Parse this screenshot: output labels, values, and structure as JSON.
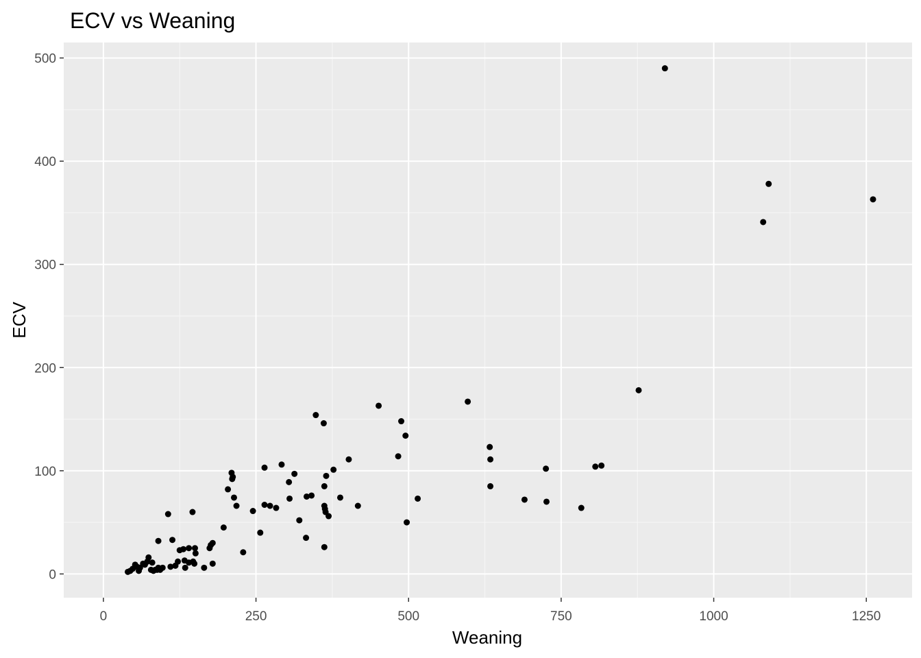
{
  "chart_data": {
    "type": "scatter",
    "title": "ECV vs Weaning",
    "xlabel": "Weaning",
    "ylabel": "ECV",
    "xlim": [
      -65,
      1325
    ],
    "ylim": [
      -23,
      515
    ],
    "x_ticks": [
      0,
      250,
      500,
      750,
      1000,
      1250
    ],
    "y_ticks": [
      0,
      100,
      200,
      300,
      400,
      500
    ],
    "x_tick_labels": [
      "0",
      "250",
      "500",
      "750",
      "1000",
      "1250"
    ],
    "y_tick_labels": [
      "0",
      "100",
      "200",
      "300",
      "400",
      "500"
    ],
    "grid": true,
    "colors": {
      "panel": "#ebebeb",
      "grid_major": "#ffffff",
      "grid_minor": "#f5f5f5",
      "point": "#000000",
      "tick": "#333333"
    },
    "points": [
      [
        40,
        2
      ],
      [
        44,
        3
      ],
      [
        48,
        5
      ],
      [
        52,
        9
      ],
      [
        55,
        7
      ],
      [
        58,
        3
      ],
      [
        60,
        6
      ],
      [
        65,
        10
      ],
      [
        68,
        9
      ],
      [
        72,
        12
      ],
      [
        74,
        16
      ],
      [
        78,
        4
      ],
      [
        80,
        11
      ],
      [
        82,
        3
      ],
      [
        85,
        4
      ],
      [
        88,
        4
      ],
      [
        90,
        6
      ],
      [
        90,
        32
      ],
      [
        93,
        4
      ],
      [
        97,
        6
      ],
      [
        106,
        58
      ],
      [
        110,
        7
      ],
      [
        113,
        33
      ],
      [
        118,
        8
      ],
      [
        122,
        12
      ],
      [
        125,
        23
      ],
      [
        131,
        24
      ],
      [
        133,
        13
      ],
      [
        134,
        6
      ],
      [
        140,
        11
      ],
      [
        140,
        25
      ],
      [
        146,
        60
      ],
      [
        147,
        12
      ],
      [
        149,
        10
      ],
      [
        150,
        25
      ],
      [
        151,
        20
      ],
      [
        165,
        6
      ],
      [
        174,
        25
      ],
      [
        176,
        28
      ],
      [
        179,
        10
      ],
      [
        179,
        30
      ],
      [
        197,
        45
      ],
      [
        204,
        82
      ],
      [
        210,
        98
      ],
      [
        211,
        92
      ],
      [
        212,
        94
      ],
      [
        214,
        74
      ],
      [
        218,
        66
      ],
      [
        229,
        21
      ],
      [
        245,
        61
      ],
      [
        257,
        40
      ],
      [
        264,
        103
      ],
      [
        264,
        67
      ],
      [
        273,
        66
      ],
      [
        283,
        64
      ],
      [
        292,
        106
      ],
      [
        304,
        89
      ],
      [
        305,
        73
      ],
      [
        313,
        97
      ],
      [
        321,
        52
      ],
      [
        332,
        35
      ],
      [
        333,
        75
      ],
      [
        341,
        76
      ],
      [
        348,
        154
      ],
      [
        361,
        146
      ],
      [
        362,
        26
      ],
      [
        362,
        85
      ],
      [
        362,
        66
      ],
      [
        363,
        63
      ],
      [
        364,
        60
      ],
      [
        365,
        95
      ],
      [
        369,
        56
      ],
      [
        377,
        101
      ],
      [
        388,
        74
      ],
      [
        402,
        111
      ],
      [
        417,
        66
      ],
      [
        451,
        163
      ],
      [
        483,
        114
      ],
      [
        488,
        148
      ],
      [
        495,
        134
      ],
      [
        497,
        50
      ],
      [
        515,
        73
      ],
      [
        597,
        167
      ],
      [
        633,
        123
      ],
      [
        634,
        111
      ],
      [
        634,
        85
      ],
      [
        690,
        72
      ],
      [
        725,
        102
      ],
      [
        726,
        70
      ],
      [
        783,
        64
      ],
      [
        806,
        104
      ],
      [
        816,
        105
      ],
      [
        877,
        178
      ],
      [
        920,
        490
      ],
      [
        1081,
        341
      ],
      [
        1090,
        378
      ],
      [
        1261,
        363
      ]
    ]
  }
}
